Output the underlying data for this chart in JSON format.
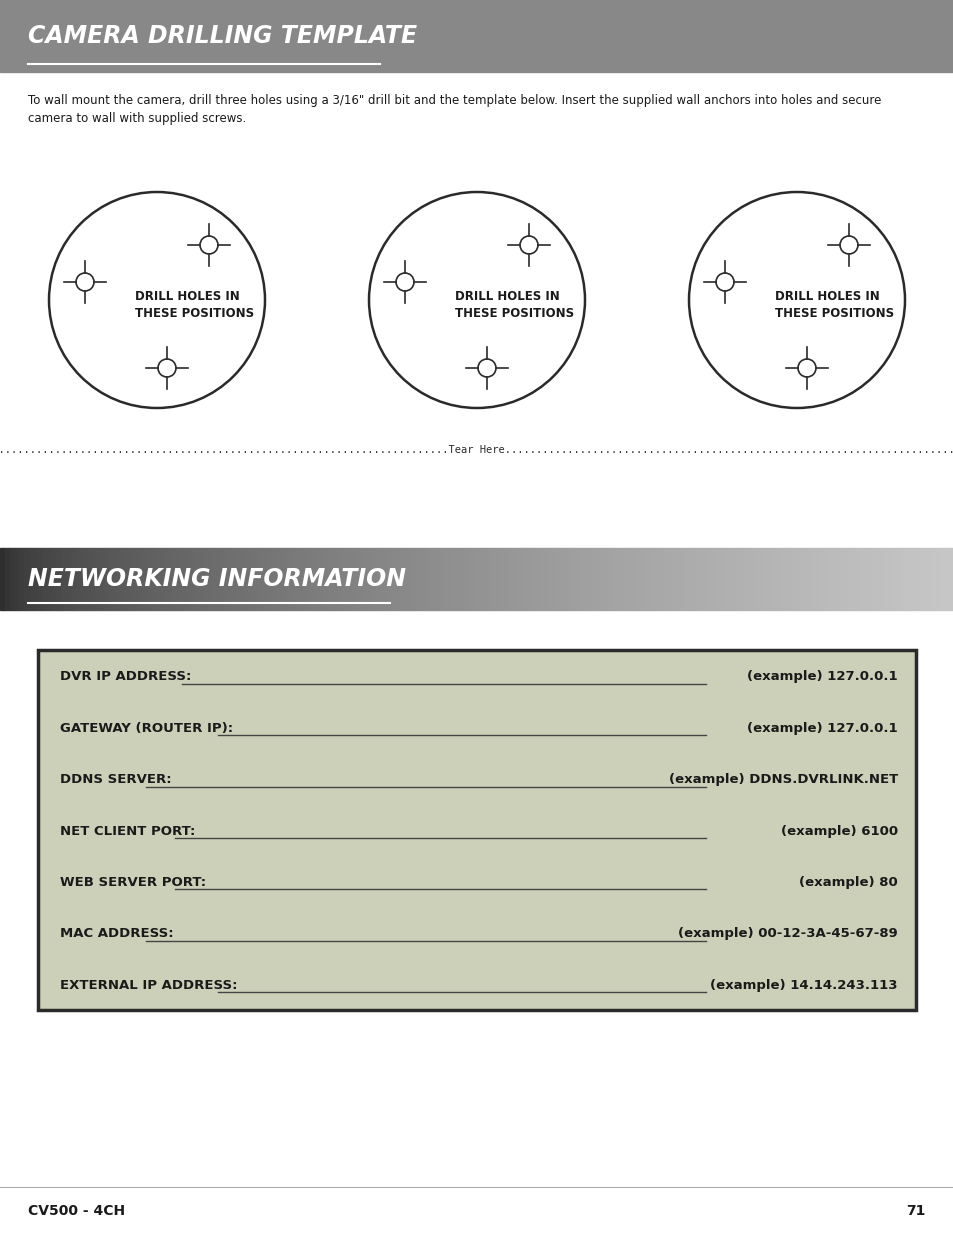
{
  "title1": "CAMERA DRILLING TEMPLATE",
  "title2": "NETWORKING INFORMATION",
  "header_bg": "#888888",
  "page_bg": "#ffffff",
  "body_text": "To wall mount the camera, drill three holes using a 3/16\" drill bit and the template below. Insert the supplied wall anchors into holes and secure\ncamera to wall with supplied screws.",
  "drill_label": "DRILL HOLES IN\nTHESE POSITIONS",
  "tear_text": "..............................................................................................................Tear Here..............................................................................................................",
  "networking_fields": [
    {
      "label": "DVR IP ADDRESS:  ",
      "example": "(example) 127.0.0.1"
    },
    {
      "label": "GATEWAY (ROUTER IP):  ",
      "example": "(example) 127.0.0.1"
    },
    {
      "label": "DDNS SERVER:",
      "example": "(example) DDNS.DVRLINK.NET"
    },
    {
      "label": "NET CLIENT PORT:",
      "example": "(example) 6100"
    },
    {
      "label": "WEB SERVER PORT:",
      "example": "(example) 80"
    },
    {
      "label": "MAC ADDRESS:",
      "example": "(example) 00-12-3A-45-67-89"
    },
    {
      "label": "EXTERNAL IP ADDRESS:  ",
      "example": "(example) 14.14.243.113"
    }
  ],
  "net_box_bg": "#cdd0b8",
  "net_box_border": "#2a2a2a",
  "footer_text": "CV500 - 4CH",
  "footer_page": "71"
}
